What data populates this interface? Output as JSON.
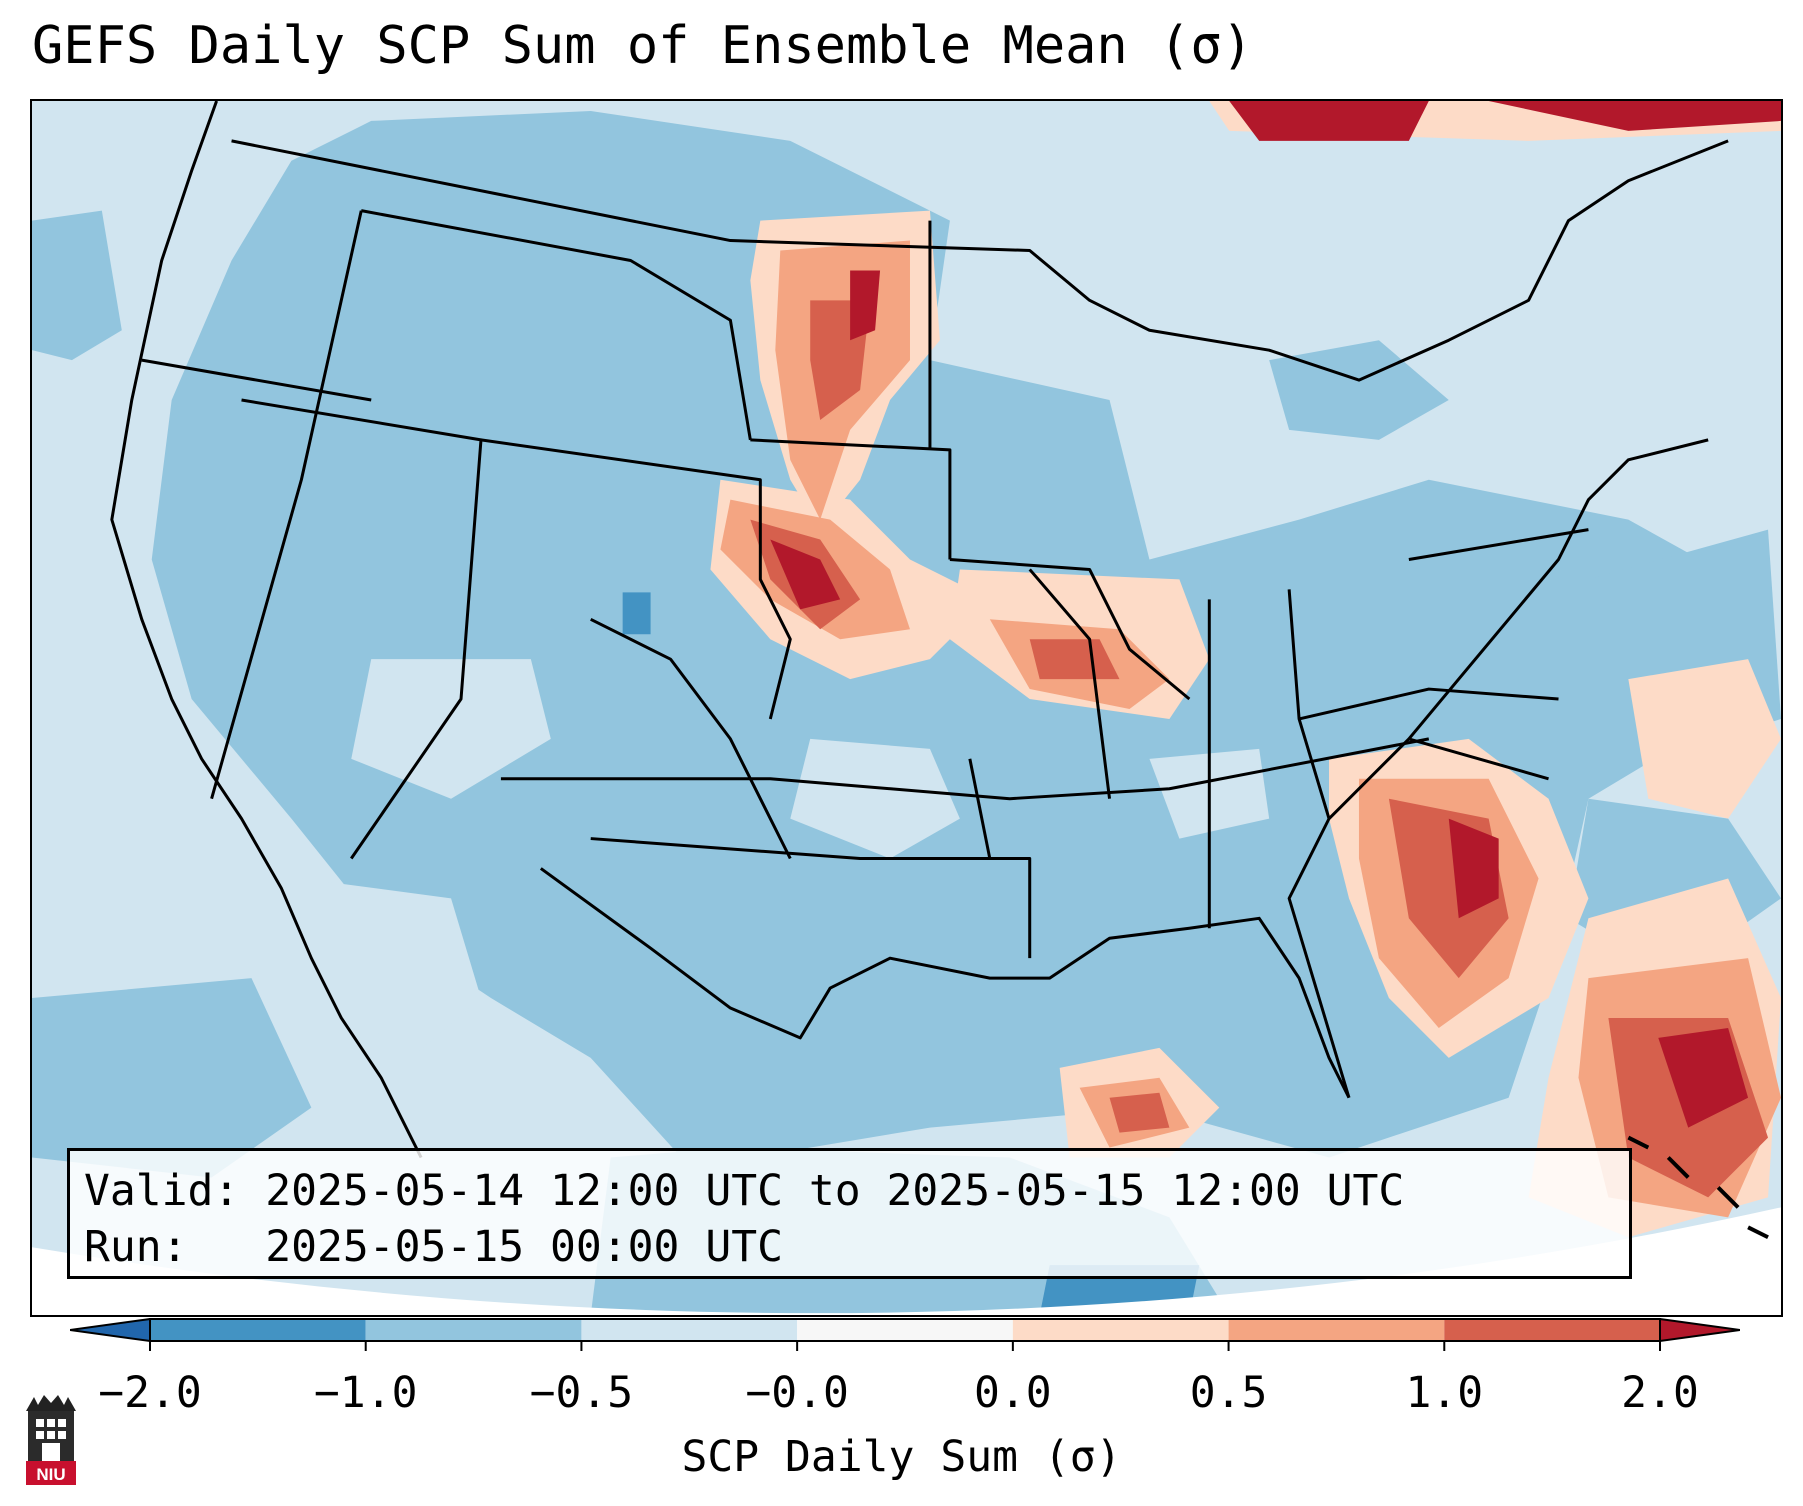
{
  "title": "GEFS Daily SCP Sum of Ensemble Mean (σ)",
  "info": {
    "valid_line": "Valid: 2025-05-14 12:00 UTC to 2025-05-15 12:00 UTC",
    "run_line": "Run:   2025-05-15 00:00 UTC"
  },
  "colorbar": {
    "label": "SCP Daily Sum (σ)",
    "extend": "both",
    "ticks": [
      "−2.0",
      "−1.0",
      "−0.5",
      "−0.0",
      "0.0",
      "0.5",
      "1.0",
      "2.0"
    ],
    "colors": [
      "#4393c3",
      "#92c5de",
      "#d1e5f0",
      "#f7f7f7",
      "#fddbc7",
      "#f4a582",
      "#d6604d",
      "#b2182b"
    ],
    "under_color": "#2166ac",
    "over_color": "#b2182b"
  },
  "logo": {
    "text": "NIU",
    "icon": "niu-tower-logo",
    "color": "#c8102e"
  }
}
